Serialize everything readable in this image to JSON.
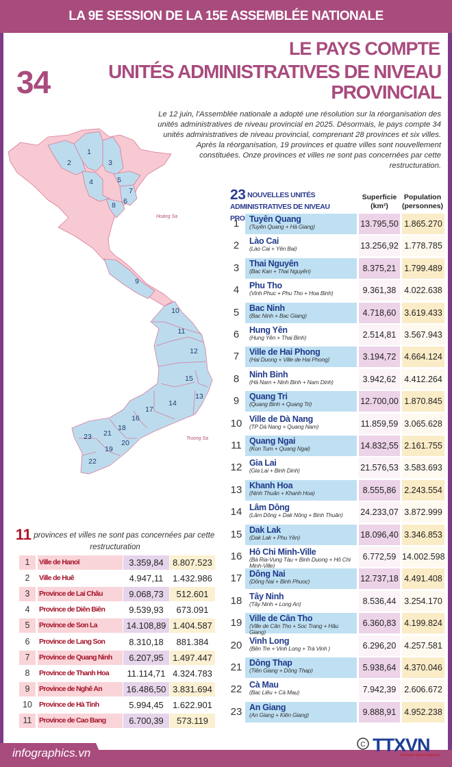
{
  "header": {
    "session": "LA 9E SESSION DE LA 15E ASSEMBLÉE NATIONALE",
    "line1": "LE PAYS COMPTE",
    "count": "34",
    "line2": "UNITÉS ADMINISTRATIVES DE NIVEAU PROVINCIAL"
  },
  "intro": "Le 12 juin, l'Assemblée nationale a adopté une résolution sur la réorganisation des unités administratives de niveau provincial en 2025. Désormais, le pays compte 34 unités administratives de niveau provincial, comprenant 28 provinces et six villes. Après la réorganisation, 19 provinces et quatre villes sont nouvellement constituées. Onze provinces et villes ne sont pas concernées par cette restructuration.",
  "colors": {
    "accent": "#a84b7d",
    "border": "#7d3b86",
    "new_units": "#bfe0f2",
    "unchanged_units": "#f7c9d3"
  },
  "map": {
    "labels": [
      "1",
      "2",
      "3",
      "4",
      "5",
      "6",
      "7",
      "8",
      "9",
      "10",
      "11",
      "12",
      "13",
      "14",
      "15",
      "16",
      "17",
      "18",
      "19",
      "20",
      "21",
      "22",
      "23"
    ],
    "islands": [
      "Hoàng Sa",
      "Truong Sa"
    ]
  },
  "new_units": {
    "count": "23",
    "title": "NOUVELLES UNITÉS ADMINISTRATIVES DE NIVEAU PROVINCIAL",
    "col_area": "Superficie (km²)",
    "col_pop": "Population (personnes)",
    "rows": [
      {
        "n": "1",
        "name": "Tuyên Quang",
        "merged": "(Tuyên Quang + Hà Giang)",
        "area": "13.795,50",
        "pop": "1.865.270"
      },
      {
        "n": "2",
        "name": "Lào Cai",
        "merged": "(Lào Cai + Yên Bai)",
        "area": "13.256,92",
        "pop": "1.778.785"
      },
      {
        "n": "3",
        "name": "Thai Nguyên",
        "merged": "(Bac Kan + Thai Nguyên)",
        "area": "8.375,21",
        "pop": "1.799.489"
      },
      {
        "n": "4",
        "name": "Phu Tho",
        "merged": "(Vinh Phuc + Phu Tho + Hoa Binh)",
        "area": "9.361,38",
        "pop": "4.022.638"
      },
      {
        "n": "5",
        "name": "Bac Ninh",
        "merged": "(Bac Ninh + Bac Giang)",
        "area": "4.718,60",
        "pop": "3.619.433"
      },
      {
        "n": "6",
        "name": "Hung Yên",
        "merged": "(Hung Yên + Thai Binh)",
        "area": "2.514,81",
        "pop": "3.567.943"
      },
      {
        "n": "7",
        "name": "Ville de Hai Phong",
        "merged": "(Hai Duong + Ville de Hai Phong)",
        "area": "3.194,72",
        "pop": "4.664.124"
      },
      {
        "n": "8",
        "name": "Ninh Binh",
        "merged": "(Hà Nam + Ninh Binh + Nam Dinh)",
        "area": "3.942,62",
        "pop": "4.412.264"
      },
      {
        "n": "9",
        "name": "Quang Tri",
        "merged": "(Quang Binh + Quang Tri)",
        "area": "12.700,00",
        "pop": "1.870.845"
      },
      {
        "n": "10",
        "name": "Ville de Dà Nang",
        "merged": "(TP Dà Nang + Quang Nam)",
        "area": "11.859,59",
        "pop": "3.065.628"
      },
      {
        "n": "11",
        "name": "Quang Ngai",
        "merged": "(Kon Tum + Quang Ngai)",
        "area": "14.832,55",
        "pop": "2.161.755"
      },
      {
        "n": "12",
        "name": "Gia Lai",
        "merged": "(Gia Lai + Binh Dinh)",
        "area": "21.576,53",
        "pop": "3.583.693"
      },
      {
        "n": "13",
        "name": "Khanh Hoa",
        "merged": "(Ninh Thuân + Khanh Hoa)",
        "area": "8.555,86",
        "pop": "2.243.554"
      },
      {
        "n": "14",
        "name": "Lâm Dông",
        "merged": "(Lâm Dông + Dak Nông + Binh Thuân)",
        "area": "24.233,07",
        "pop": "3.872.999"
      },
      {
        "n": "15",
        "name": "Dak Lak",
        "merged": "(Dak Lak + Phu Yên)",
        "area": "18.096,40",
        "pop": "3.346.853"
      },
      {
        "n": "16",
        "name": "Hô Chi Minh-Ville",
        "merged": "(Bà Ria-Vung Tàu + Binh Duong + Hô Chi Minh-Ville)",
        "area": "6.772,59",
        "pop": "14.002.598"
      },
      {
        "n": "17",
        "name": "Dông Nai",
        "merged": "(Dông Nai + Binh Phuoc)",
        "area": "12.737,18",
        "pop": "4.491.408"
      },
      {
        "n": "18",
        "name": "Tây Ninh",
        "merged": "(Tây Ninh + Long An)",
        "area": "8.536,44",
        "pop": "3.254.170"
      },
      {
        "n": "19",
        "name": "Ville de Cân Tho",
        "merged": "(Ville de Cân Tho + Soc Trang + Hâu Giang)",
        "area": "6.360,83",
        "pop": "4.199.824"
      },
      {
        "n": "20",
        "name": "Vinh Long",
        "merged": "(Bên Tre + Vinh Long + Trà Vinh )",
        "area": "6.296,20",
        "pop": "4.257.581"
      },
      {
        "n": "21",
        "name": "Dông Thap",
        "merged": "(Tiên Giang + Dông Thap)",
        "area": "5.938,64",
        "pop": "4.370.046"
      },
      {
        "n": "22",
        "name": "Cà Mau",
        "merged": "(Bac Liêu + Cà Mau)",
        "area": "7.942,39",
        "pop": "2.606.672"
      },
      {
        "n": "23",
        "name": "An Giang",
        "merged": "(An Giang + Kiên Giang)",
        "area": "9.888,91",
        "pop": "4.952.238"
      }
    ]
  },
  "unchanged": {
    "count": "11",
    "title": "provinces et villes ne sont pas concernées par cette restructuration",
    "rows": [
      {
        "n": "1",
        "name": "Ville de Hanoï",
        "area": "3.359,84",
        "pop": "8.807.523"
      },
      {
        "n": "2",
        "name": "Ville de Huê",
        "area": "4.947,11",
        "pop": "1.432.986"
      },
      {
        "n": "3",
        "name": "Province de Lai Châu",
        "area": "9.068,73",
        "pop": "512.601"
      },
      {
        "n": "4",
        "name": "Province de Diên Biên",
        "area": "9.539,93",
        "pop": "673.091"
      },
      {
        "n": "5",
        "name": "Province de Son La",
        "area": "14.108,89",
        "pop": "1.404.587"
      },
      {
        "n": "6",
        "name": "Province de Lang Son",
        "area": "8.310,18",
        "pop": "881.384"
      },
      {
        "n": "7",
        "name": "Province de Quang Ninh",
        "area": "6.207,95",
        "pop": "1.497.447"
      },
      {
        "n": "8",
        "name": "Province de Thanh Hoa",
        "area": "11.114,71",
        "pop": "4.324.783"
      },
      {
        "n": "9",
        "name": "Province de Nghê An",
        "area": "16.486,50",
        "pop": "3.831.694"
      },
      {
        "n": "10",
        "name": "Province de Hà Tinh",
        "area": "5.994,45",
        "pop": "1.622.901"
      },
      {
        "n": "11",
        "name": "Province de Cao Bang",
        "area": "6.700,39",
        "pop": "573.119"
      }
    ]
  },
  "footer": {
    "site": "infographics.vn",
    "logo": "TTXVN",
    "logo_sub": "Vietnam News Agency",
    "copyright": "©"
  }
}
